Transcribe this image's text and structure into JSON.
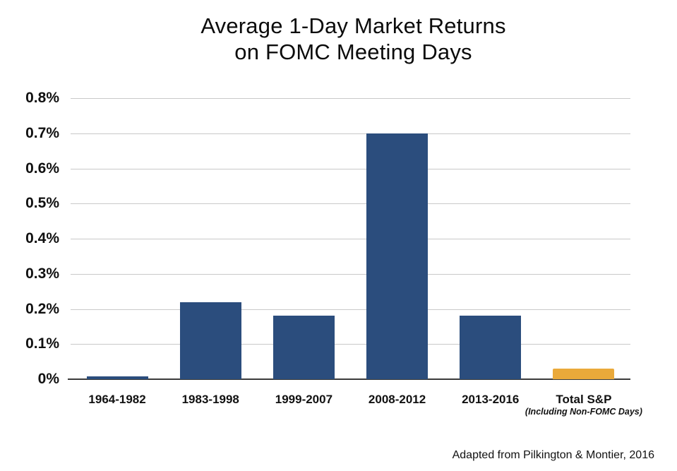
{
  "title": {
    "line1": "Average 1-Day Market Returns",
    "line2": "on FOMC Meeting Days"
  },
  "attribution": "Adapted from Pilkington & Montier, 2016",
  "colors": {
    "bar_primary": "#2B4D7D",
    "bar_highlight": "#EAA93A",
    "gridline": "#C9C9C9",
    "axis_line": "#3B3B3B",
    "text": "#111111"
  },
  "chart_data": {
    "type": "bar",
    "title": "Average 1-Day Market Returns on FOMC Meeting Days",
    "categories": [
      "1964-1982",
      "1983-1998",
      "1999-2007",
      "2008-2012",
      "2013-2016",
      "Total S&P"
    ],
    "category_sublabels": [
      "",
      "",
      "",
      "",
      "",
      "(Including Non-FOMC Days)"
    ],
    "values": [
      0.008,
      0.22,
      0.18,
      0.7,
      0.18,
      0.03
    ],
    "unit": "%",
    "xlabel": "",
    "ylabel": "",
    "ylim": [
      0,
      0.8
    ],
    "ytick_step": 0.1,
    "ytick_labels": [
      "0%",
      "0.1%",
      "0.2%",
      "0.3%",
      "0.4%",
      "0.5%",
      "0.6%",
      "0.7%",
      "0.8%"
    ],
    "bar_colors": [
      "#2B4D7D",
      "#2B4D7D",
      "#2B4D7D",
      "#2B4D7D",
      "#2B4D7D",
      "#EAA93A"
    ],
    "grid": true,
    "legend": false,
    "annotation": "Adapted from Pilkington & Montier, 2016"
  }
}
